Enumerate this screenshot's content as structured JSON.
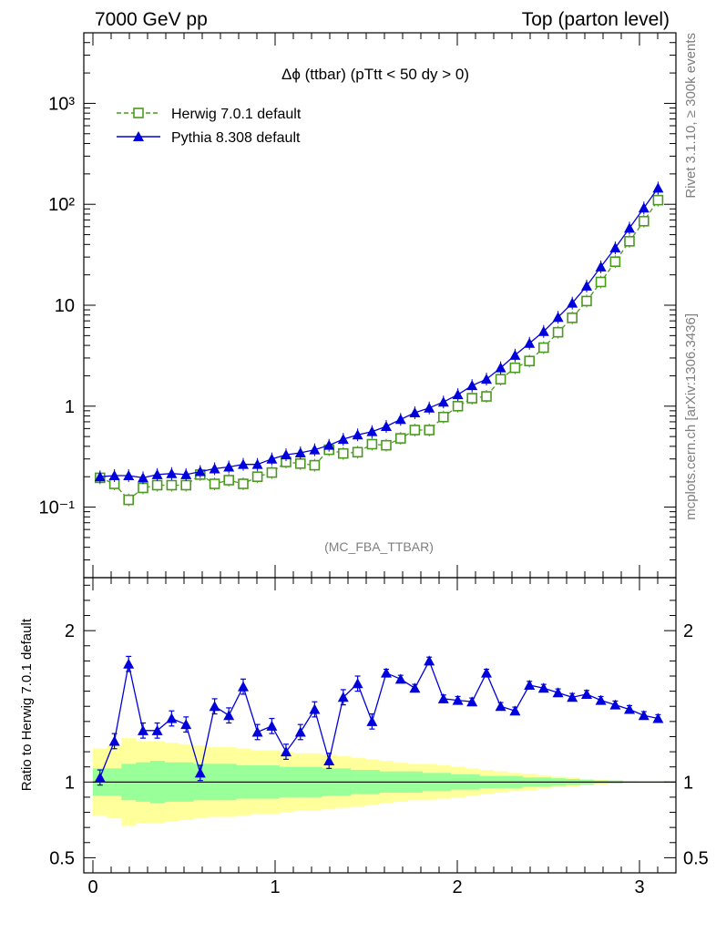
{
  "header": {
    "left": "7000 GeV pp",
    "right": "Top (parton level)"
  },
  "side_labels": {
    "rivet": "Rivet 3.1.10, ≥ 300k events",
    "mcplots": "mcplots.cern.ch [arXiv:1306.3436]"
  },
  "chart_data": [
    {
      "type": "line",
      "title": "Δϕ (ttbar) (pTtt < 50 dy > 0)",
      "watermark": "(MC_FBA_TTBAR)",
      "scale": "log",
      "ylim": [
        0.02,
        5000
      ],
      "xlim": [
        -0.05,
        3.2
      ],
      "y_tick_labels": [
        "10⁻¹",
        "1",
        "10",
        "10²",
        "10³"
      ],
      "x": [
        0.039,
        0.118,
        0.196,
        0.275,
        0.353,
        0.432,
        0.511,
        0.589,
        0.668,
        0.746,
        0.825,
        0.903,
        0.982,
        1.06,
        1.139,
        1.217,
        1.296,
        1.374,
        1.453,
        1.532,
        1.61,
        1.689,
        1.767,
        1.846,
        1.924,
        2.003,
        2.081,
        2.16,
        2.238,
        2.317,
        2.396,
        2.474,
        2.553,
        2.631,
        2.71,
        2.788,
        2.867,
        2.945,
        3.024,
        3.102
      ],
      "series": [
        {
          "name": "Herwig 7.0.1 default",
          "color": "#4a9a1e",
          "marker": "open-square",
          "values": [
            0.195,
            0.17,
            0.118,
            0.155,
            0.165,
            0.165,
            0.165,
            0.21,
            0.17,
            0.185,
            0.17,
            0.2,
            0.22,
            0.28,
            0.27,
            0.26,
            0.37,
            0.34,
            0.35,
            0.42,
            0.41,
            0.48,
            0.58,
            0.58,
            0.78,
            1.0,
            1.2,
            1.25,
            1.85,
            2.4,
            2.8,
            3.8,
            5.4,
            7.5,
            11,
            17,
            27,
            43,
            68,
            110
          ]
        },
        {
          "name": "Pythia 8.308 default",
          "color": "#0000dd",
          "marker": "filled-triangle",
          "values": [
            0.2,
            0.205,
            0.205,
            0.195,
            0.21,
            0.215,
            0.21,
            0.225,
            0.24,
            0.25,
            0.265,
            0.265,
            0.3,
            0.33,
            0.345,
            0.37,
            0.41,
            0.47,
            0.52,
            0.56,
            0.63,
            0.74,
            0.86,
            0.96,
            1.1,
            1.3,
            1.6,
            1.85,
            2.4,
            3.2,
            4.2,
            5.5,
            7.6,
            10.5,
            15.5,
            24,
            37,
            58,
            92,
            145
          ]
        }
      ]
    },
    {
      "type": "line",
      "ylabel": "Ratio to Herwig 7.0.1 default",
      "ylim": [
        0.4,
        2.35
      ],
      "y_tick_labels": [
        "0.5",
        "1",
        "2"
      ],
      "x_tick_labels": [
        "0",
        "1",
        "2",
        "3"
      ],
      "reference_line": 1,
      "band_colors": {
        "outer": "#ffff9c",
        "inner": "#99ff99"
      },
      "band_inner": [
        0.09,
        0.09,
        0.12,
        0.13,
        0.14,
        0.13,
        0.13,
        0.12,
        0.12,
        0.12,
        0.11,
        0.11,
        0.11,
        0.1,
        0.1,
        0.1,
        0.09,
        0.09,
        0.08,
        0.08,
        0.07,
        0.07,
        0.07,
        0.06,
        0.06,
        0.05,
        0.05,
        0.04,
        0.04,
        0.04,
        0.03,
        0.03,
        0.025,
        0.02,
        0.015,
        0.01,
        0.01,
        0.005,
        0.005,
        0.005
      ],
      "band_outer": [
        0.22,
        0.24,
        0.29,
        0.27,
        0.27,
        0.26,
        0.25,
        0.24,
        0.23,
        0.23,
        0.22,
        0.21,
        0.21,
        0.2,
        0.19,
        0.19,
        0.18,
        0.17,
        0.16,
        0.15,
        0.14,
        0.13,
        0.12,
        0.12,
        0.11,
        0.1,
        0.09,
        0.08,
        0.07,
        0.06,
        0.055,
        0.045,
        0.035,
        0.03,
        0.02,
        0.015,
        0.01,
        0.008,
        0.005,
        0.004
      ],
      "series": [
        {
          "name": "Pythia 8.308 default",
          "color": "#0000dd",
          "values": [
            1.03,
            1.27,
            1.78,
            1.34,
            1.34,
            1.42,
            1.38,
            1.06,
            1.5,
            1.44,
            1.63,
            1.33,
            1.37,
            1.2,
            1.33,
            1.48,
            1.14,
            1.56,
            1.65,
            1.4,
            1.72,
            1.68,
            1.62,
            1.8,
            1.55,
            1.54,
            1.53,
            1.72,
            1.5,
            1.47,
            1.64,
            1.62,
            1.59,
            1.56,
            1.58,
            1.54,
            1.51,
            1.48,
            1.44,
            1.42
          ]
        }
      ]
    }
  ]
}
